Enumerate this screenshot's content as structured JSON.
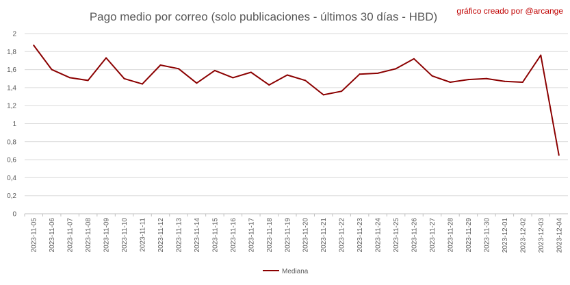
{
  "chart_data": {
    "type": "line",
    "title": "Pago medio por correo (solo publicaciones - últimos 30 días - HBD)",
    "credit": "gráfico creado por @arcange",
    "xlabel": "",
    "ylabel": "",
    "ylim": [
      0,
      2
    ],
    "yticks": [
      "0",
      "0,2",
      "0,4",
      "0,6",
      "0,8",
      "1",
      "1,2",
      "1,4",
      "1,6",
      "1,8",
      "2"
    ],
    "ytick_values": [
      0,
      0.2,
      0.4,
      0.6,
      0.8,
      1.0,
      1.2,
      1.4,
      1.6,
      1.8,
      2.0
    ],
    "grid": true,
    "legend_position": "bottom",
    "categories": [
      "2023-11-05",
      "2023-11-06",
      "2023-11-07",
      "2023-11-08",
      "2023-11-09",
      "2023-11-10",
      "2023-11-11",
      "2023-11-12",
      "2023-11-13",
      "2023-11-14",
      "2023-11-15",
      "2023-11-16",
      "2023-11-17",
      "2023-11-18",
      "2023-11-19",
      "2023-11-20",
      "2023-11-21",
      "2023-11-22",
      "2023-11-23",
      "2023-11-24",
      "2023-11-25",
      "2023-11-26",
      "2023-11-27",
      "2023-11-28",
      "2023-11-29",
      "2023-11-30",
      "2023-12-01",
      "2023-12-02",
      "2023-12-03",
      "2023-12-04"
    ],
    "series": [
      {
        "name": "Mediana",
        "color": "#8b0000",
        "values": [
          1.87,
          1.6,
          1.51,
          1.48,
          1.73,
          1.5,
          1.44,
          1.65,
          1.61,
          1.45,
          1.59,
          1.51,
          1.57,
          1.43,
          1.54,
          1.48,
          1.32,
          1.36,
          1.55,
          1.56,
          1.61,
          1.72,
          1.53,
          1.46,
          1.49,
          1.5,
          1.47,
          1.46,
          1.76,
          0.65
        ]
      }
    ],
    "colors": {
      "grid": "#d9d9d9",
      "axis": "#bfbfbf",
      "text": "#595959",
      "credit": "#c00000"
    }
  }
}
